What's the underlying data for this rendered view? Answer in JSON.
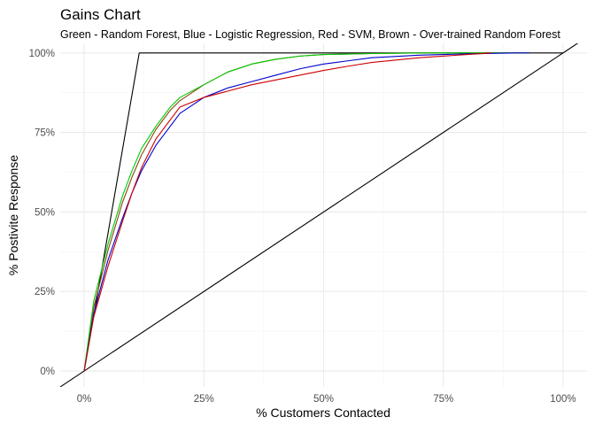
{
  "chart_data": {
    "type": "line",
    "title": "Gains Chart",
    "subtitle": "Green - Random Forest, Blue - Logistic Regression, Red - SVM, Brown - Over-trained Random Forest",
    "xlabel": "% Customers Contacted",
    "ylabel": "% Postivite Response",
    "xlim": [
      -0.05,
      1.05
    ],
    "ylim": [
      -0.05,
      1.03
    ],
    "x_ticks": [
      0,
      0.25,
      0.5,
      0.75,
      1.0
    ],
    "x_tick_labels": [
      "0%",
      "25%",
      "50%",
      "75%",
      "100%"
    ],
    "y_ticks": [
      0,
      0.25,
      0.5,
      0.75,
      1.0
    ],
    "y_tick_labels": [
      "0%",
      "25%",
      "50%",
      "75%",
      "100%"
    ],
    "grid": true,
    "legend": "none",
    "series": [
      {
        "color": "#000000",
        "x": [
          0,
          0.115,
          1.0
        ],
        "y": [
          0,
          1.0,
          1.0
        ]
      },
      {
        "color": "#000000",
        "x": [
          -0.05,
          1.05
        ],
        "y": [
          -0.05,
          1.05
        ]
      },
      {
        "color": "#8b4513",
        "x": [
          0,
          0.02,
          0.05,
          0.08,
          0.1,
          0.12,
          0.15,
          0.18,
          0.2,
          0.25,
          0.3,
          0.35,
          0.4,
          0.45,
          0.5,
          0.6,
          0.7,
          0.8,
          0.93
        ],
        "y": [
          0,
          0.2,
          0.38,
          0.53,
          0.61,
          0.68,
          0.76,
          0.82,
          0.85,
          0.9,
          0.94,
          0.965,
          0.98,
          0.99,
          0.995,
          0.998,
          1.0,
          1.0,
          1.0
        ]
      },
      {
        "color": "#00cc00",
        "x": [
          0,
          0.02,
          0.05,
          0.08,
          0.1,
          0.12,
          0.15,
          0.18,
          0.2,
          0.25,
          0.3,
          0.35,
          0.4,
          0.45,
          0.5,
          0.6,
          0.7,
          0.8,
          0.93
        ],
        "y": [
          0,
          0.22,
          0.4,
          0.55,
          0.63,
          0.7,
          0.77,
          0.83,
          0.86,
          0.9,
          0.94,
          0.965,
          0.98,
          0.99,
          0.995,
          0.998,
          1.0,
          1.0,
          1.0
        ]
      },
      {
        "color": "#0000cc",
        "x": [
          0,
          0.02,
          0.05,
          0.08,
          0.1,
          0.12,
          0.15,
          0.18,
          0.2,
          0.25,
          0.3,
          0.35,
          0.4,
          0.45,
          0.5,
          0.55,
          0.6,
          0.7,
          0.8,
          0.9,
          0.93
        ],
        "y": [
          0,
          0.18,
          0.35,
          0.48,
          0.56,
          0.63,
          0.71,
          0.77,
          0.81,
          0.86,
          0.89,
          0.91,
          0.93,
          0.95,
          0.965,
          0.975,
          0.985,
          0.993,
          0.997,
          1.0,
          1.0
        ]
      },
      {
        "color": "#cc0000",
        "x": [
          0,
          0.02,
          0.05,
          0.08,
          0.1,
          0.12,
          0.15,
          0.18,
          0.2,
          0.25,
          0.3,
          0.35,
          0.4,
          0.45,
          0.5,
          0.55,
          0.6,
          0.7,
          0.8,
          0.85
        ],
        "y": [
          0,
          0.17,
          0.33,
          0.47,
          0.56,
          0.64,
          0.73,
          0.79,
          0.83,
          0.86,
          0.88,
          0.9,
          0.915,
          0.93,
          0.945,
          0.958,
          0.97,
          0.985,
          0.995,
          1.0
        ]
      }
    ]
  }
}
